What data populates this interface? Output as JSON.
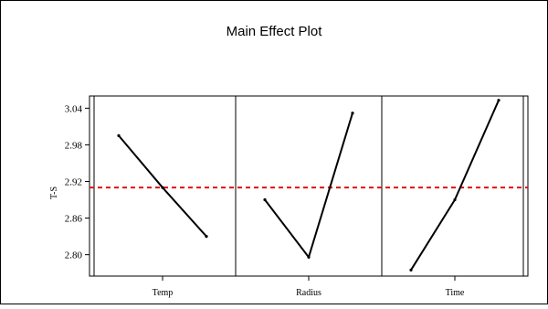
{
  "chart_data": {
    "type": "line",
    "title": "Main Effect Plot",
    "ylabel": "T-S",
    "ylim": [
      2.765,
      3.06
    ],
    "yticks": [
      2.8,
      2.86,
      2.92,
      2.98,
      3.04
    ],
    "ytick_labels": [
      "2.80",
      "2.86",
      "2.92",
      "2.98",
      "3.04"
    ],
    "grid": false,
    "legend": "none",
    "reference_line": {
      "value": 2.91,
      "style": "dashed",
      "color": "#e01010"
    },
    "line_color": "#000000",
    "panels": [
      {
        "label": "Temp",
        "values": [
          2.995,
          2.91,
          2.83
        ]
      },
      {
        "label": "Radius",
        "values": [
          2.89,
          2.796,
          3.032
        ]
      },
      {
        "label": "Time",
        "values": [
          2.775,
          2.89,
          3.053
        ]
      }
    ]
  }
}
